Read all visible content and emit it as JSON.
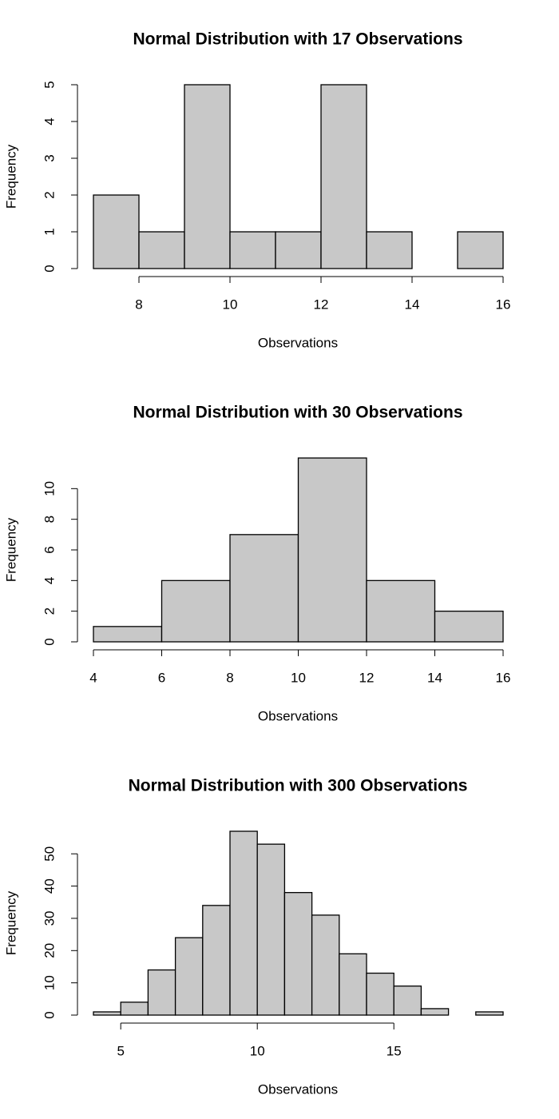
{
  "chart_data": [
    {
      "type": "histogram",
      "title": "Normal Distribution with 17 Observations",
      "x_label": "Observations",
      "y_label": "Frequency",
      "bins": [
        7,
        8,
        9,
        10,
        11,
        12,
        13,
        14,
        15,
        16
      ],
      "counts": [
        2,
        1,
        5,
        1,
        1,
        5,
        1,
        0,
        1
      ],
      "color": "#c8c8c8",
      "xlim": [
        7,
        16
      ],
      "xticks": [
        8,
        10,
        12,
        14,
        16
      ],
      "ylim": [
        0,
        5
      ],
      "yticks": [
        0,
        1,
        2,
        3,
        4,
        5
      ]
    },
    {
      "type": "histogram",
      "title": "Normal Distribution with 30 Observations",
      "x_label": "Observations",
      "y_label": "Frequency",
      "bins": [
        4,
        6,
        8,
        10,
        12,
        14,
        16
      ],
      "counts": [
        1,
        4,
        7,
        12,
        4,
        2
      ],
      "color": "#c8c8c8",
      "xlim": [
        4,
        16
      ],
      "xticks": [
        4,
        6,
        8,
        10,
        12,
        14,
        16
      ],
      "ylim": [
        0,
        12
      ],
      "yticks": [
        0,
        2,
        4,
        6,
        8,
        10
      ]
    },
    {
      "type": "histogram",
      "title": "Normal Distribution with 300 Observations",
      "x_label": "Observations",
      "y_label": "Frequency",
      "bins": [
        4,
        5,
        6,
        7,
        8,
        9,
        10,
        11,
        12,
        13,
        14,
        15,
        16,
        17,
        18,
        19
      ],
      "counts": [
        1,
        4,
        14,
        24,
        34,
        57,
        53,
        38,
        31,
        19,
        13,
        9,
        2,
        0,
        1
      ],
      "color": "#c8c8c8",
      "xlim": [
        4,
        19
      ],
      "xticks": [
        5,
        10,
        15
      ],
      "ylim": [
        0,
        57
      ],
      "yticks": [
        0,
        10,
        20,
        30,
        40,
        50
      ]
    }
  ]
}
